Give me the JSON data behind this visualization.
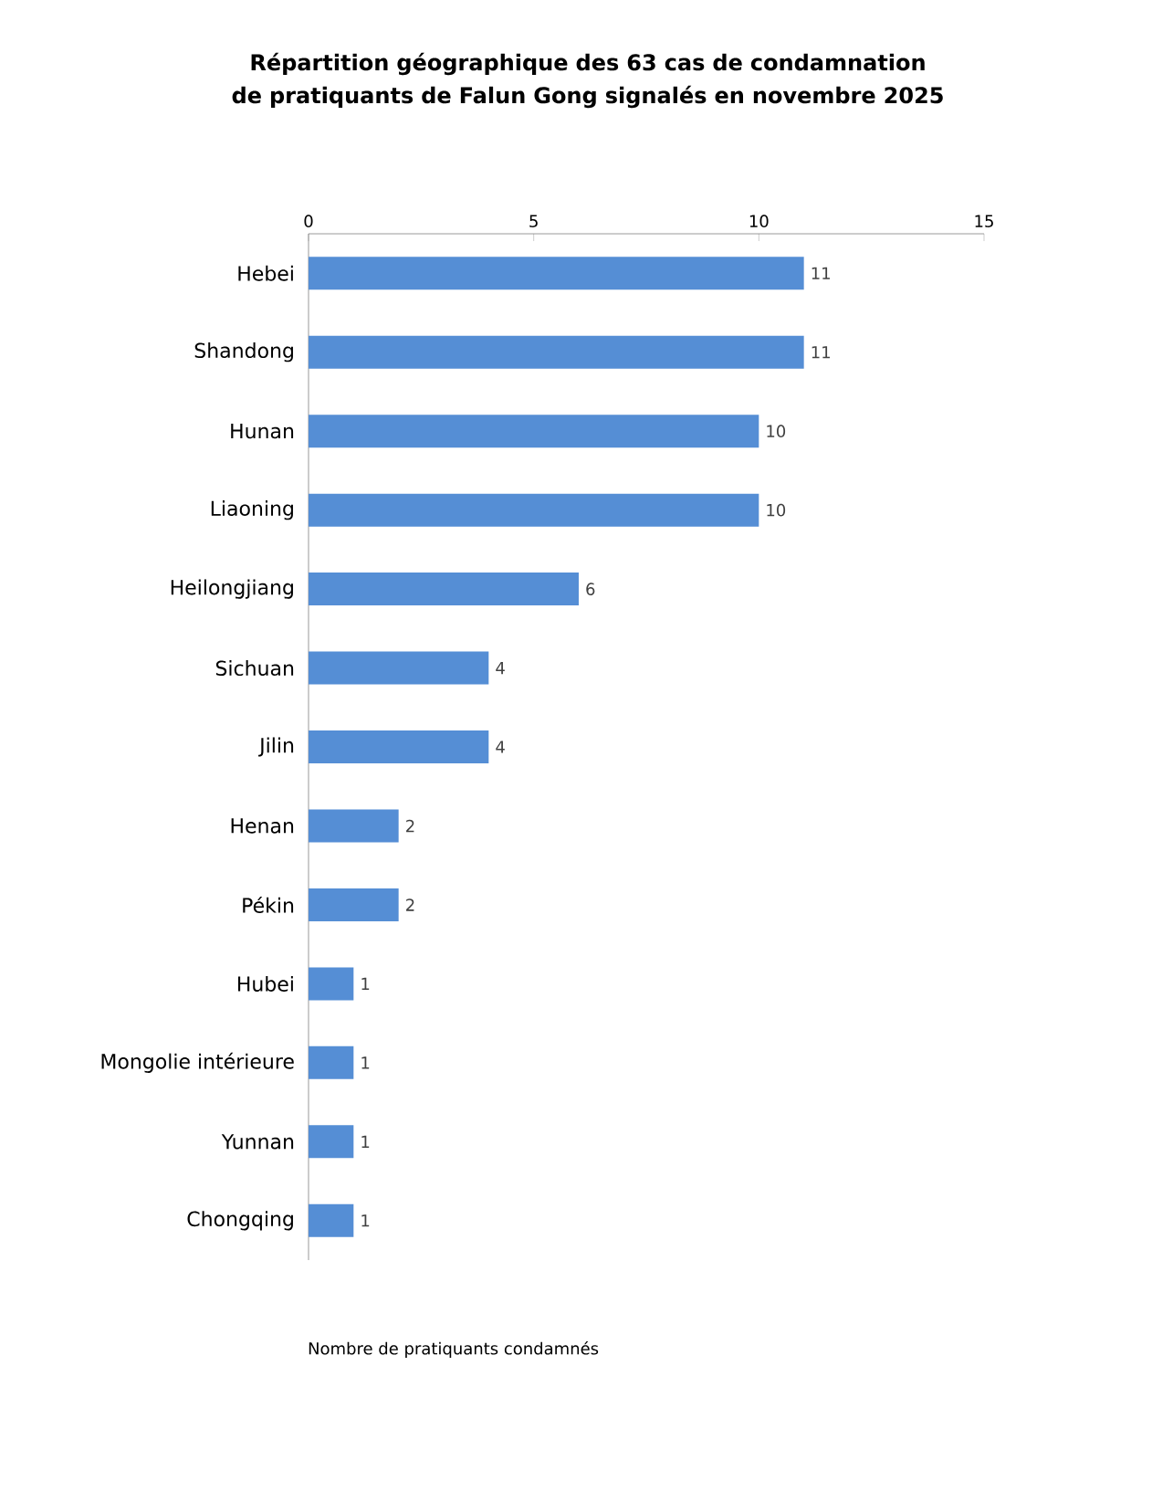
{
  "chart_data": {
    "type": "bar",
    "orientation": "horizontal",
    "title": "Répartition géographique des 63 cas de condamnation de pratiquants de Falun Gong signalés en novembre 2025",
    "xlabel": "Nombre de pratiquants condamnés",
    "categories": [
      "Hebei",
      "Shandong",
      "Hunan",
      "Liaoning",
      "Heilongjiang",
      "Sichuan",
      "Jilin",
      "Henan",
      "Pékin",
      "Hubei",
      "Mongolie intérieure",
      "Yunnan",
      "Chongqing"
    ],
    "values": [
      11,
      11,
      10,
      10,
      6,
      4,
      4,
      2,
      2,
      1,
      1,
      1,
      1
    ],
    "color": "#558ed5",
    "xlim": [
      0,
      15
    ],
    "xticks": [
      0,
      5,
      10,
      15
    ],
    "data_labels": true
  }
}
